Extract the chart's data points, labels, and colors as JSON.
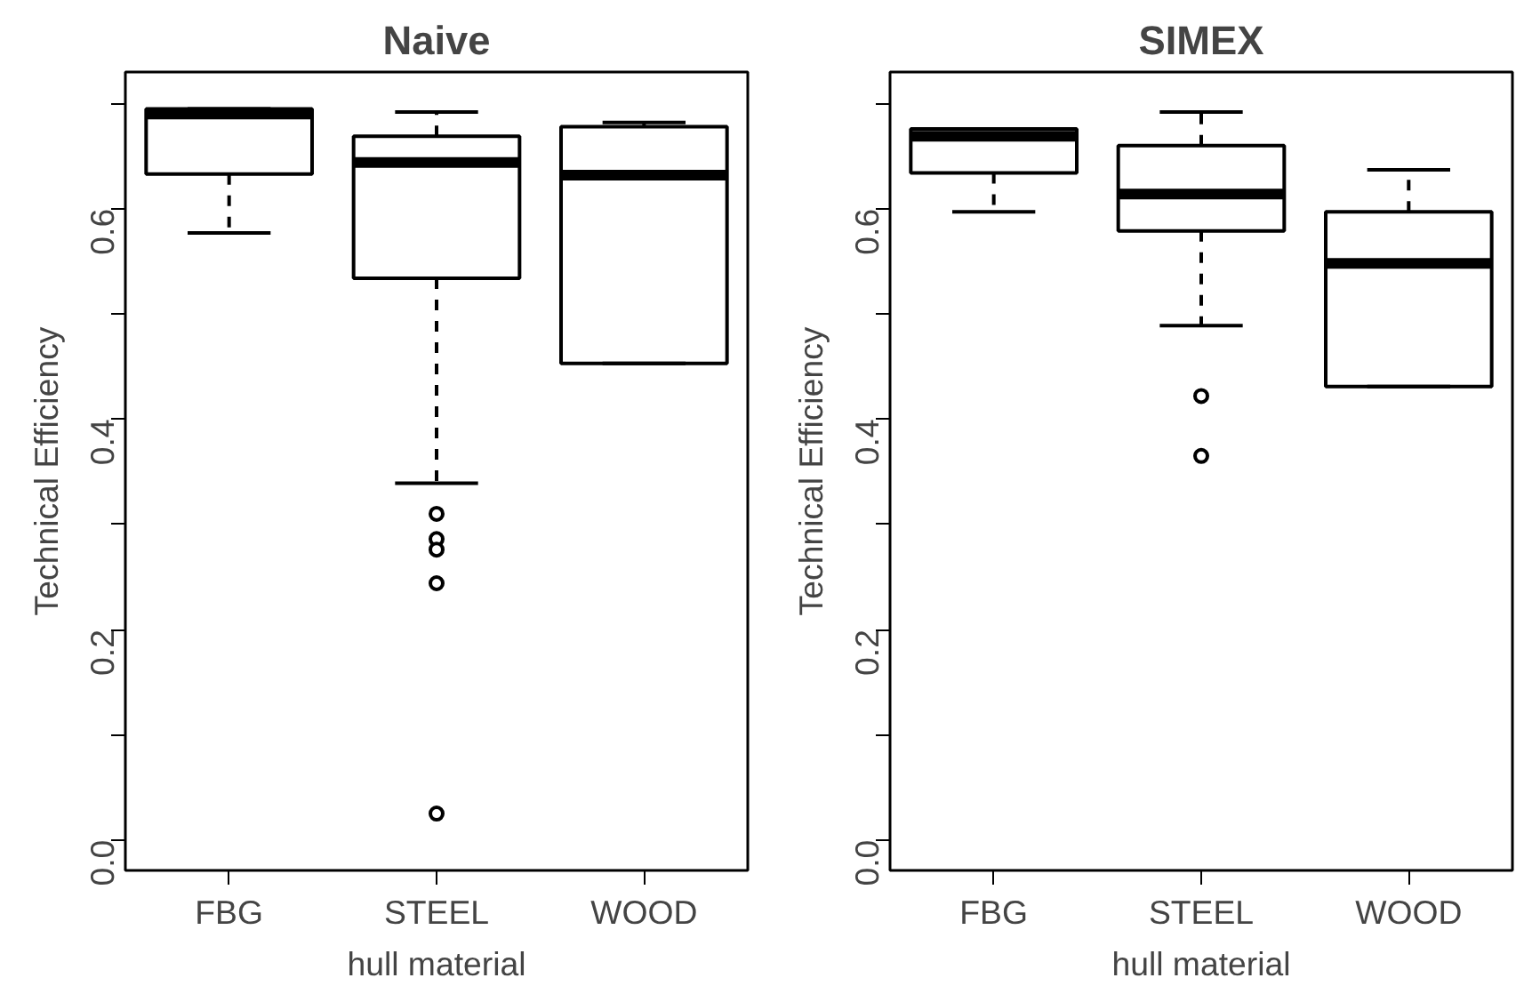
{
  "chart_data": [
    {
      "type": "box",
      "title": "Naive",
      "xlabel": "hull material",
      "ylabel": "Technical Efficiency",
      "categories": [
        "FBG",
        "STEEL",
        "WOOD"
      ],
      "boxes": [
        {
          "low": 0.577,
          "q1": 0.633,
          "median": 0.69,
          "q3": 0.695,
          "high": 0.695
        },
        {
          "low": 0.339,
          "q1": 0.534,
          "median": 0.644,
          "q3": 0.669,
          "high": 0.692,
          "outliers": [
            0.31,
            0.286,
            0.276,
            0.244,
            0.025
          ]
        },
        {
          "low": 0.453,
          "q1": 0.453,
          "median": 0.632,
          "q3": 0.678,
          "high": 0.682
        }
      ],
      "color": "#000000",
      "ylim": [
        -0.029,
        0.73
      ],
      "yticks": [
        {
          "value": 0,
          "label": "0.0"
        },
        {
          "value": 0.1,
          "label": null
        },
        0.2,
        {
          "value": 0.3,
          "label": null
        },
        0.4,
        {
          "value": 0.5,
          "label": null
        },
        0.6,
        {
          "value": 0.7,
          "label": null
        }
      ],
      "grid": false
    },
    {
      "type": "box",
      "title": "SIMEX",
      "xlabel": "hull material",
      "ylabel": "Technical Efficiency",
      "categories": [
        "FBG",
        "STEEL",
        "WOOD"
      ],
      "boxes": [
        {
          "low": 0.597,
          "q1": 0.634,
          "median": 0.669,
          "q3": 0.676,
          "high": 0.676
        },
        {
          "low": 0.489,
          "q1": 0.579,
          "median": 0.614,
          "q3": 0.66,
          "high": 0.692,
          "outliers": [
            0.422,
            0.365
          ]
        },
        {
          "low": 0.431,
          "q1": 0.431,
          "median": 0.548,
          "q3": 0.597,
          "high": 0.637
        }
      ],
      "color": "#000000",
      "ylim": [
        -0.029,
        0.73
      ],
      "yticks": [
        {
          "value": 0,
          "label": "0.0"
        },
        {
          "value": 0.1,
          "label": null
        },
        0.2,
        {
          "value": 0.3,
          "label": null
        },
        0.4,
        {
          "value": 0.5,
          "label": null
        },
        0.6,
        {
          "value": 0.7,
          "label": null
        }
      ],
      "grid": false
    }
  ]
}
